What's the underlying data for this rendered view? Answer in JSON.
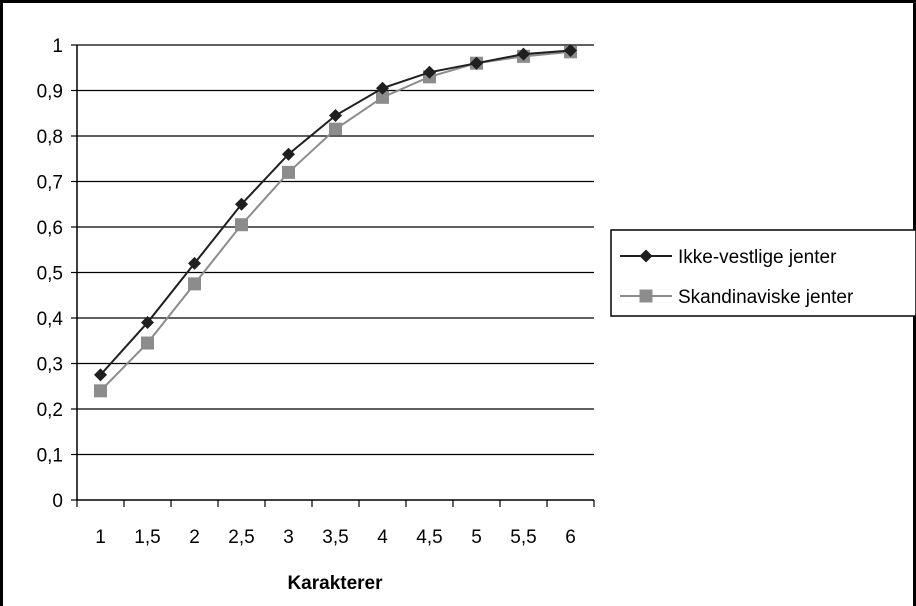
{
  "chart_data": {
    "type": "line",
    "xlabel": "Karakterer",
    "ylabel": "",
    "categories": [
      "1",
      "1,5",
      "2",
      "2,5",
      "3",
      "3,5",
      "4",
      "4,5",
      "5",
      "5,5",
      "6"
    ],
    "y_ticks": [
      "0",
      "0,1",
      "0,2",
      "0,3",
      "0,4",
      "0,5",
      "0,6",
      "0,7",
      "0,8",
      "0,9",
      "1"
    ],
    "ylim": [
      0,
      1
    ],
    "grid": true,
    "legend_position": "right",
    "series": [
      {
        "name": "Ikke-vestlige jenter",
        "color": "#1f1f1f",
        "marker": "diamond",
        "values": [
          0.275,
          0.39,
          0.52,
          0.65,
          0.76,
          0.845,
          0.905,
          0.94,
          0.96,
          0.98,
          0.988
        ]
      },
      {
        "name": "Skandinaviske jenter",
        "color": "#8c8c8c",
        "marker": "square",
        "values": [
          0.24,
          0.345,
          0.475,
          0.605,
          0.72,
          0.815,
          0.885,
          0.93,
          0.96,
          0.975,
          0.985
        ]
      }
    ]
  }
}
